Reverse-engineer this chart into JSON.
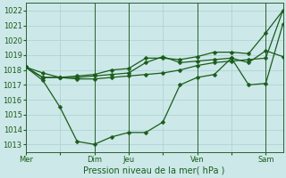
{
  "background_color": "#cce8e8",
  "grid_color": "#aad0d0",
  "line_color": "#1a5c1a",
  "xlabel": "Pression niveau de la mer( hPa )",
  "ylim": [
    1012.5,
    1022.5
  ],
  "yticks": [
    1013,
    1014,
    1015,
    1016,
    1017,
    1018,
    1019,
    1020,
    1021,
    1022
  ],
  "xtick_labels": [
    "Mer",
    "",
    "Dim",
    "Jeu",
    "",
    "Ven",
    "",
    "Sam"
  ],
  "xtick_positions": [
    0,
    2,
    4,
    6,
    8,
    10,
    12,
    14
  ],
  "vline_positions": [
    4,
    6,
    10,
    14
  ],
  "xmin": 0,
  "xmax": 15,
  "line1_x": [
    0,
    1,
    2,
    3,
    4,
    5,
    6,
    7,
    8,
    9,
    10,
    11,
    12,
    13,
    14,
    15
  ],
  "line1_y": [
    1018.2,
    1017.8,
    1017.5,
    1017.4,
    1017.4,
    1017.5,
    1017.6,
    1017.7,
    1017.8,
    1018.0,
    1018.3,
    1018.5,
    1018.6,
    1018.7,
    1018.8,
    1022.0
  ],
  "line2_x": [
    0,
    1,
    2,
    3,
    4,
    5,
    6,
    7,
    8,
    9,
    10,
    11,
    12,
    13,
    14,
    15
  ],
  "line2_y": [
    1018.2,
    1017.3,
    1015.5,
    1013.2,
    1013.0,
    1013.5,
    1013.8,
    1013.8,
    1014.5,
    1017.0,
    1017.5,
    1017.7,
    1018.8,
    1017.0,
    1017.1,
    1021.1
  ],
  "line3_x": [
    0,
    1,
    2,
    3,
    4,
    5,
    6,
    7,
    8,
    9,
    10,
    11,
    12,
    13,
    14,
    15
  ],
  "line3_y": [
    1018.2,
    1017.5,
    1017.5,
    1017.5,
    1017.6,
    1017.7,
    1017.8,
    1018.5,
    1018.9,
    1018.5,
    1018.6,
    1018.7,
    1018.8,
    1018.5,
    1019.3,
    1018.9
  ],
  "line4_x": [
    0,
    1,
    2,
    3,
    4,
    5,
    6,
    7,
    8,
    9,
    10,
    11,
    12,
    13,
    14,
    15
  ],
  "line4_y": [
    1018.2,
    1017.5,
    1017.5,
    1017.6,
    1017.7,
    1018.0,
    1018.1,
    1018.8,
    1018.8,
    1018.7,
    1018.9,
    1019.2,
    1019.2,
    1019.1,
    1020.5,
    1022.0
  ],
  "xlabel_fontsize": 7,
  "ytick_fontsize": 6,
  "xtick_fontsize": 6
}
